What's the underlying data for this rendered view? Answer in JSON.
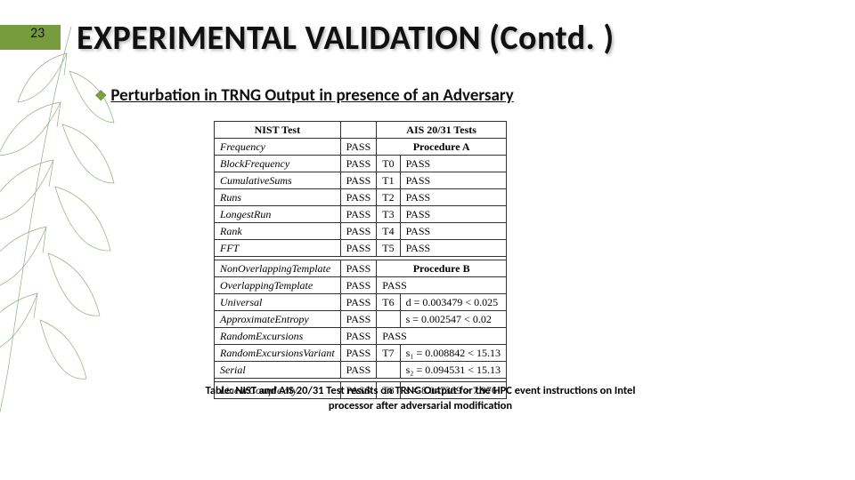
{
  "slide": {
    "page_number": "23",
    "title": "EXPERIMENTAL VALIDATION (Contd. )",
    "bullet": "Perturbation in TRNG Output in presence of an Adversary",
    "caption": "Table:  NIST and AIS 20/31 Test results on TRNG Output for the HPC event instructions on Intel processor after adversarial modification"
  },
  "colors": {
    "accent": "#769c3e",
    "leaf_stroke": "#3a6b22"
  },
  "table": {
    "header": {
      "nist_test": "NIST Test",
      "blank": "",
      "ais_tests": "AIS 20/31 Tests"
    },
    "rows": [
      {
        "c1": "Frequency",
        "c2": "PASS",
        "c3": "",
        "c4": "Procedure A",
        "span34": true,
        "bold34": true,
        "ital1": true
      },
      {
        "c1": "BlockFrequency",
        "c2": "PASS",
        "c3": "T0",
        "c4": "PASS",
        "ital1": true
      },
      {
        "c1": "CumulativeSums",
        "c2": "PASS",
        "c3": "T1",
        "c4": "PASS",
        "ital1": true
      },
      {
        "c1": "Runs",
        "c2": "PASS",
        "c3": "T2",
        "c4": "PASS",
        "ital1": true
      },
      {
        "c1": "LongestRun",
        "c2": "PASS",
        "c3": "T3",
        "c4": "PASS",
        "ital1": true
      },
      {
        "c1": "Rank",
        "c2": "PASS",
        "c3": "T4",
        "c4": "PASS",
        "ital1": true
      },
      {
        "c1": "FFT",
        "c2": "PASS",
        "c3": "T5",
        "c4": "PASS",
        "ital1": true
      },
      {
        "gap": true
      },
      {
        "c1": "NonOverlappingTemplate",
        "c2": "PASS",
        "c3": "",
        "c4": "Procedure B",
        "span34": true,
        "bold34": true,
        "ital1": true
      },
      {
        "c1": "OverlappingTemplate",
        "c2": "PASS",
        "c3": "",
        "c4": "PASS",
        "span34": true,
        "ital1": true
      },
      {
        "c1": "Universal",
        "c2": "PASS",
        "c3": "T6",
        "c4": "d = 0.003479 < 0.025",
        "ital1": true
      },
      {
        "c1": "ApproximateEntropy",
        "c2": "PASS",
        "c3": "",
        "c4": "s = 0.002547 < 0.02",
        "ital1": true
      },
      {
        "c1": "RandomExcursions",
        "c2": "PASS",
        "c3": "",
        "c4": "PASS",
        "span34": true,
        "ital1": true
      },
      {
        "c1": "RandomExcursionsVariant",
        "c2": "PASS",
        "c3": "T7",
        "c4": "s₁ = 0.008842 < 15.13",
        "ital1": true
      },
      {
        "c1": "Serial",
        "c2": "PASS",
        "c3": "",
        "c4": "s₂ = 0.094531 < 15.13",
        "ital1": true
      },
      {
        "gap": true
      },
      {
        "c1": "LinearComplexity",
        "c2": "PASS",
        "c3": "T8",
        "c4": "s = 8.047369 > 7.976",
        "ital1": true
      }
    ]
  }
}
